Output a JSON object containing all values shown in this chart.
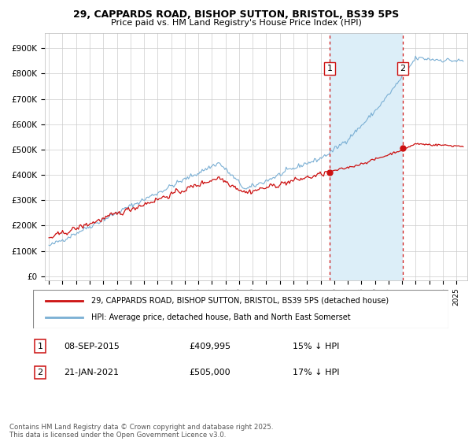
{
  "title1": "29, CAPPARDS ROAD, BISHOP SUTTON, BRISTOL, BS39 5PS",
  "title2": "Price paid vs. HM Land Registry's House Price Index (HPI)",
  "ylabel_ticks": [
    "£0",
    "£100K",
    "£200K",
    "£300K",
    "£400K",
    "£500K",
    "£600K",
    "£700K",
    "£800K",
    "£900K"
  ],
  "ytick_vals": [
    0,
    100000,
    200000,
    300000,
    400000,
    500000,
    600000,
    700000,
    800000,
    900000
  ],
  "xmin": 1994.7,
  "xmax": 2025.8,
  "ymin": -15000,
  "ymax": 960000,
  "hpi_color": "#7aafd4",
  "price_color": "#cc1111",
  "vline_color": "#cc1111",
  "shade_color": "#dceef8",
  "marker1_x": 2015.68,
  "marker2_x": 2021.05,
  "marker1_label": "1",
  "marker2_label": "2",
  "transaction1_date": "08-SEP-2015",
  "transaction1_price": "£409,995",
  "transaction1_hpi": "15% ↓ HPI",
  "transaction2_date": "21-JAN-2021",
  "transaction2_price": "£505,000",
  "transaction2_hpi": "17% ↓ HPI",
  "legend1": "29, CAPPARDS ROAD, BISHOP SUTTON, BRISTOL, BS39 5PS (detached house)",
  "legend2": "HPI: Average price, detached house, Bath and North East Somerset",
  "footnote": "Contains HM Land Registry data © Crown copyright and database right 2025.\nThis data is licensed under the Open Government Licence v3.0.",
  "background_color": "#ffffff"
}
